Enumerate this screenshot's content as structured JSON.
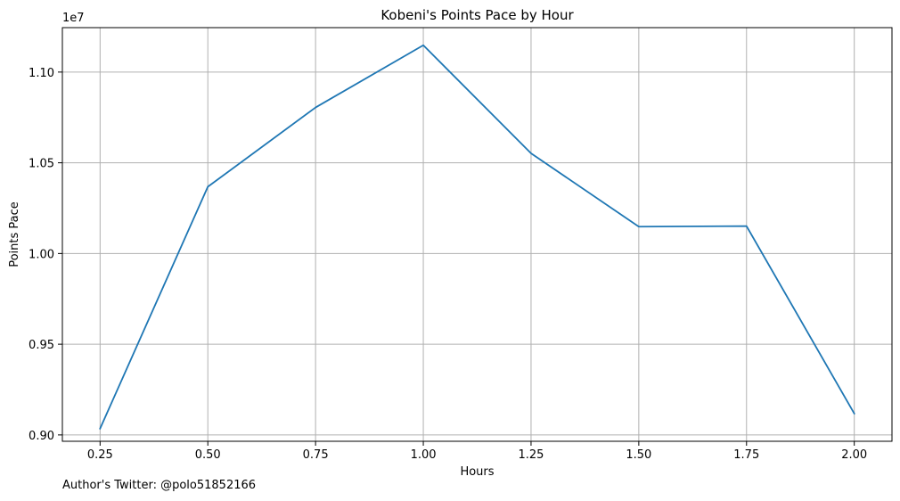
{
  "chart_data": {
    "type": "line",
    "title": "Kobeni's Points Pace by Hour",
    "xlabel": "Hours",
    "ylabel": "Points Pace",
    "y_offset_label": "1e7",
    "x": [
      0.25,
      0.5,
      0.75,
      1.0,
      1.25,
      1.5,
      1.75,
      2.0
    ],
    "series": [
      {
        "values": [
          9035000,
          10368000,
          10805000,
          11148000,
          10552000,
          10148000,
          10151000,
          9118000
        ],
        "color": "#1f77b4"
      }
    ],
    "xlim": [
      0.1625,
      2.0875
    ],
    "ylim": [
      8965000,
      11245000
    ],
    "x_ticks": [
      0.25,
      0.5,
      0.75,
      1.0,
      1.25,
      1.5,
      1.75,
      2.0
    ],
    "x_tick_labels": [
      "0.25",
      "0.50",
      "0.75",
      "1.00",
      "1.25",
      "1.50",
      "1.75",
      "2.00"
    ],
    "y_ticks": [
      9000000,
      9500000,
      10000000,
      10500000,
      11000000
    ],
    "y_tick_labels": [
      "0.90",
      "0.95",
      "1.00",
      "1.05",
      "1.10"
    ],
    "grid": true,
    "legend": "none",
    "grid_color": "#b0b0b0"
  },
  "footer": {
    "text": "Author's Twitter: @polo51852166"
  }
}
